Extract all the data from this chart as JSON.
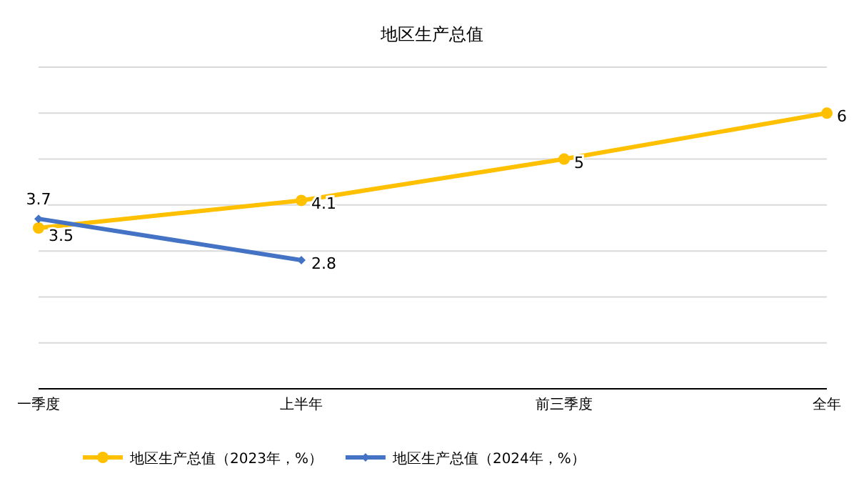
{
  "chart_data": {
    "type": "line",
    "title": "地区生产总值",
    "categories": [
      "一季度",
      "上半年",
      "前三季度",
      "全年"
    ],
    "series": [
      {
        "name": "地区生产总值（2023年，%）",
        "color": "#ffc000",
        "marker": "circle",
        "values": [
          3.5,
          4.1,
          5,
          6
        ]
      },
      {
        "name": "地区生产总值（2024年，%）",
        "color": "#4472c4",
        "marker": "diamond",
        "values": [
          3.7,
          2.8,
          null,
          null
        ]
      }
    ],
    "ylim": [
      0,
      7
    ],
    "yticks": [
      {
        "value": 0,
        "label": null
      },
      {
        "value": 1,
        "label": null
      },
      {
        "value": 2,
        "label": null
      },
      {
        "value": 3,
        "label": null
      },
      {
        "value": 4,
        "label": null
      },
      {
        "value": 5,
        "label": null
      },
      {
        "value": 6,
        "label": null
      },
      {
        "value": 7,
        "label": null
      }
    ],
    "grid": "y",
    "legend": "bottom",
    "data_labels": true,
    "tick_labels": "x"
  }
}
